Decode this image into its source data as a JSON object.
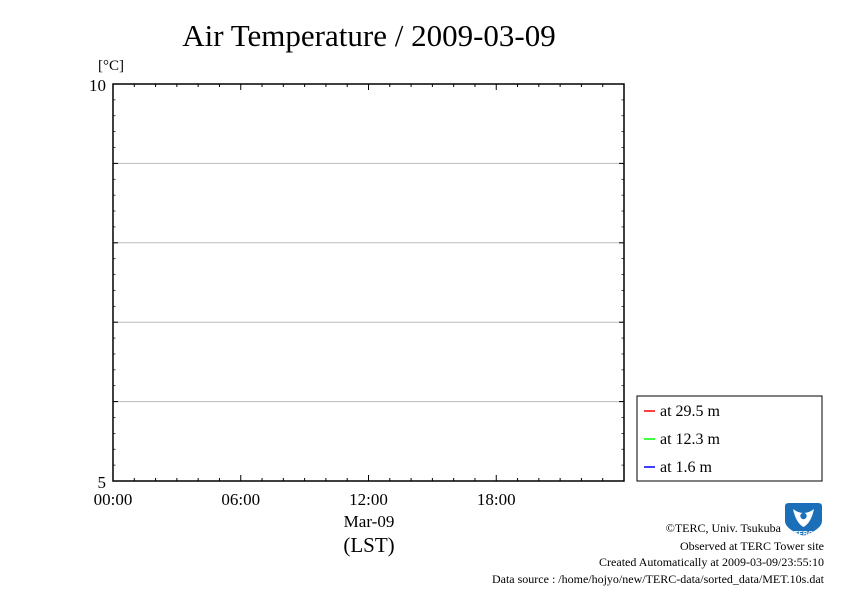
{
  "chart_data": {
    "type": "line",
    "title": "Air Temperature / 2009-03-09",
    "ylabel": "[°C]",
    "xlabel": "(LST)",
    "date_label": "Mar-09",
    "ylim": [
      5,
      10
    ],
    "xlim": [
      "00:00",
      "24:00"
    ],
    "y_tick_labels": [
      "10",
      "5"
    ],
    "y_gridlines": [
      6,
      7,
      8,
      9
    ],
    "x_ticks": [
      {
        "value": 0,
        "label": "00:00"
      },
      {
        "value": 6,
        "label": "06:00"
      },
      {
        "value": 12,
        "label": "12:00"
      },
      {
        "value": 18,
        "label": "18:00"
      }
    ],
    "grid": "horizontal",
    "legend_position": "bottom-right-outside",
    "series": [
      {
        "name": "at 29.5 m",
        "color": "#ff0000",
        "values": []
      },
      {
        "name": "at 12.3 m",
        "color": "#00ff00",
        "values": []
      },
      {
        "name": "at 1.6 m",
        "color": "#0000ff",
        "values": []
      }
    ]
  },
  "credits": {
    "copyright": "©TERC, Univ. Tsukuba",
    "observed": "Observed at TERC Tower site",
    "created": "Created Automatically at 2009-03-09/23:55:10",
    "source": "Data source : /home/hojyo/new/TERC-data/sorted_data/MET.10s.dat"
  },
  "logo": {
    "text": "TERC",
    "color": "#1a6fb8"
  }
}
